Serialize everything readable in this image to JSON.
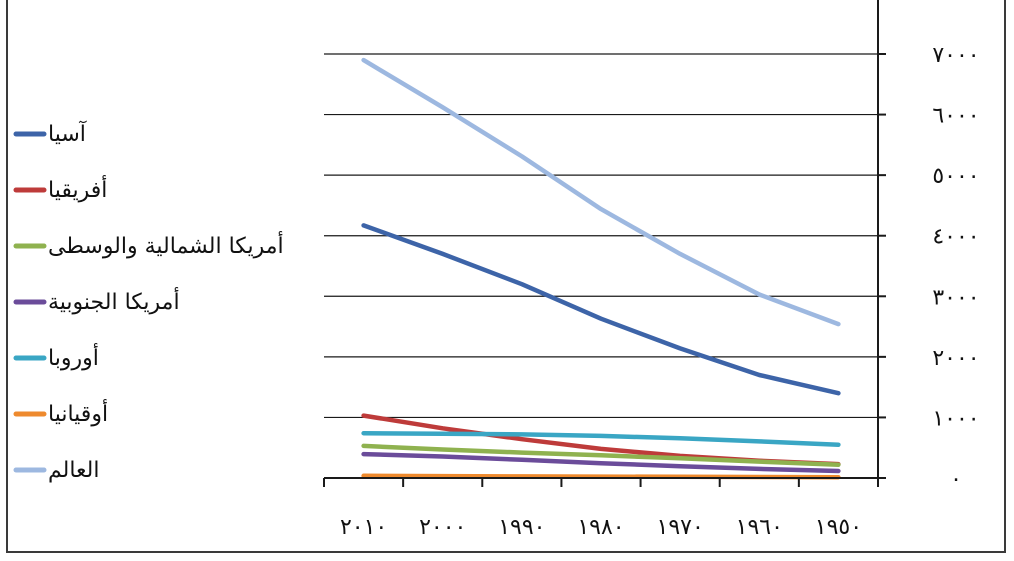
{
  "chart_data": {
    "type": "line",
    "x": [
      "١٩٥٠",
      "١٩٦٠",
      "١٩٧٠",
      "١٩٨٠",
      "١٩٩٠",
      "٢٠٠٠",
      "٢٠١٠"
    ],
    "y_ticks": [
      "٠",
      "١٠٠٠",
      "٢٠٠٠",
      "٣٠٠٠",
      "٤٠٠٠",
      "٥٠٠٠",
      "٦٠٠٠",
      "٧٠٠٠"
    ],
    "ylim": [
      0,
      7000
    ],
    "grid": true,
    "x_axis_reversed": true,
    "y_axis_side": "right",
    "legend_position": "left",
    "series": [
      {
        "name": "آسيا",
        "color": "#3d64a8",
        "values": [
          1400,
          1700,
          2140,
          2630,
          3200,
          3700,
          4170
        ]
      },
      {
        "name": "أفريقيا",
        "color": "#be3b3a",
        "values": [
          230,
          285,
          365,
          480,
          640,
          820,
          1030
        ]
      },
      {
        "name": "أمريكا الشمالية والوسطى",
        "color": "#8fb24f",
        "values": [
          220,
          270,
          325,
          375,
          420,
          470,
          530
        ]
      },
      {
        "name": "أمريكا الجنوبية",
        "color": "#6b4c9a",
        "values": [
          115,
          150,
          195,
          245,
          300,
          355,
          395
        ]
      },
      {
        "name": "أوروبا",
        "color": "#3aa6c4",
        "values": [
          550,
          605,
          655,
          695,
          720,
          730,
          740
        ]
      },
      {
        "name": "أوقيانيا",
        "color": "#ee8a2e",
        "values": [
          13,
          16,
          19,
          23,
          27,
          31,
          36
        ]
      },
      {
        "name": "العالم",
        "color": "#9db8e0",
        "values": [
          2540,
          3030,
          3700,
          4440,
          5310,
          6120,
          6900
        ]
      }
    ]
  }
}
